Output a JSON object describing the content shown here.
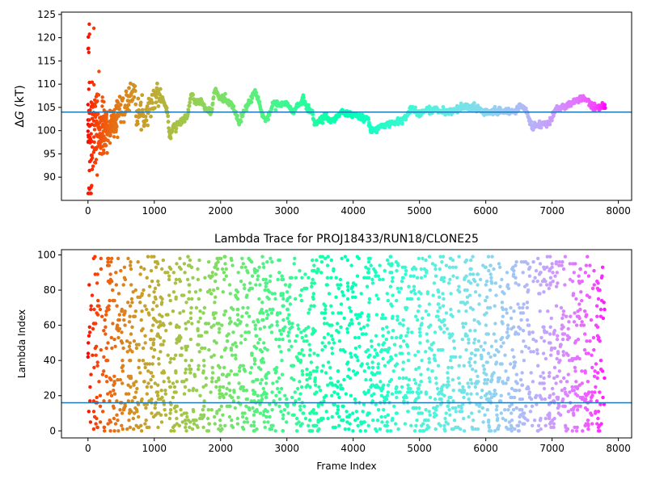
{
  "chart_data": [
    {
      "type": "scatter",
      "title": "",
      "xlabel": "",
      "ylabel": "ΔG (kT)",
      "ylabel_parts": {
        "delta": "Δ",
        "var": "G",
        "unit": " (kT)"
      },
      "xlim": [
        -400,
        8200
      ],
      "ylim": [
        85,
        125.5
      ],
      "xticks": [
        0,
        1000,
        2000,
        3000,
        4000,
        5000,
        6000,
        7000,
        8000
      ],
      "xtick_labels": [
        "0",
        "1000",
        "2000",
        "3000",
        "4000",
        "5000",
        "6000",
        "7000",
        "8000"
      ],
      "yticks": [
        90,
        95,
        100,
        105,
        110,
        115,
        120,
        125
      ],
      "ytick_labels": [
        "90",
        "95",
        "100",
        "105",
        "110",
        "115",
        "120",
        "125"
      ],
      "hline": 104,
      "hline_color": "#1f77b4",
      "colormap": "rainbow (red at frame 0 to violet at last frame)",
      "grid": false,
      "legend": "none",
      "point_count": 7800,
      "trace_knots": [
        [
          0,
          100
        ],
        [
          150,
          99
        ],
        [
          250,
          97
        ],
        [
          350,
          101
        ],
        [
          450,
          106
        ],
        [
          550,
          104
        ],
        [
          650,
          108
        ],
        [
          700,
          110
        ],
        [
          750,
          104
        ],
        [
          850,
          103
        ],
        [
          950,
          106
        ],
        [
          1050,
          108
        ],
        [
          1150,
          106
        ],
        [
          1200,
          104
        ],
        [
          1230,
          98.5
        ],
        [
          1300,
          101
        ],
        [
          1400,
          102
        ],
        [
          1500,
          103
        ],
        [
          1560,
          108.5
        ],
        [
          1620,
          106
        ],
        [
          1700,
          106.5
        ],
        [
          1780,
          104.5
        ],
        [
          1860,
          104
        ],
        [
          1920,
          109
        ],
        [
          1980,
          107
        ],
        [
          2050,
          107
        ],
        [
          2150,
          106
        ],
        [
          2220,
          104
        ],
        [
          2280,
          101.5
        ],
        [
          2350,
          104
        ],
        [
          2450,
          106.5
        ],
        [
          2520,
          108.5
        ],
        [
          2580,
          106
        ],
        [
          2650,
          102.5
        ],
        [
          2720,
          103
        ],
        [
          2800,
          106
        ],
        [
          2900,
          105.5
        ],
        [
          3000,
          106
        ],
        [
          3080,
          104
        ],
        [
          3150,
          105
        ],
        [
          3250,
          107
        ],
        [
          3300,
          105
        ],
        [
          3380,
          104
        ],
        [
          3420,
          101.5
        ],
        [
          3500,
          102
        ],
        [
          3580,
          103.5
        ],
        [
          3650,
          102
        ],
        [
          3750,
          103
        ],
        [
          3850,
          104
        ],
        [
          3950,
          103.5
        ],
        [
          4100,
          103
        ],
        [
          4220,
          102.5
        ],
        [
          4270,
          99.8
        ],
        [
          4400,
          100.8
        ],
        [
          4550,
          101.5
        ],
        [
          4700,
          102
        ],
        [
          4800,
          103
        ],
        [
          4900,
          105
        ],
        [
          5000,
          103.5
        ],
        [
          5100,
          104.5
        ],
        [
          5250,
          104.5
        ],
        [
          5400,
          104
        ],
        [
          5550,
          104.5
        ],
        [
          5700,
          105.2
        ],
        [
          5850,
          105
        ],
        [
          6000,
          104
        ],
        [
          6150,
          104.2
        ],
        [
          6300,
          104
        ],
        [
          6450,
          104.2
        ],
        [
          6520,
          105.5
        ],
        [
          6600,
          104.3
        ],
        [
          6700,
          101
        ],
        [
          6850,
          101.2
        ],
        [
          6950,
          101.5
        ],
        [
          7050,
          104.5
        ],
        [
          7150,
          105
        ],
        [
          7300,
          106
        ],
        [
          7400,
          106.5
        ],
        [
          7500,
          107
        ],
        [
          7600,
          105.5
        ],
        [
          7700,
          105
        ],
        [
          7800,
          105.3
        ]
      ],
      "early_scatter_range": [
        86.5,
        124
      ]
    },
    {
      "type": "scatter",
      "title": "Lambda Trace for PROJ18433/RUN18/CLONE25",
      "xlabel": "Frame Index",
      "ylabel": "Lambda Index",
      "xlim": [
        -400,
        8200
      ],
      "ylim": [
        -4,
        103
      ],
      "xticks": [
        0,
        1000,
        2000,
        3000,
        4000,
        5000,
        6000,
        7000,
        8000
      ],
      "xtick_labels": [
        "0",
        "1000",
        "2000",
        "3000",
        "4000",
        "5000",
        "6000",
        "7000",
        "8000"
      ],
      "yticks": [
        0,
        20,
        40,
        60,
        80,
        100
      ],
      "ytick_labels": [
        "0",
        "20",
        "40",
        "60",
        "80",
        "100"
      ],
      "hline": 16,
      "hline_color": "#1f77b4",
      "colormap": "rainbow (red at frame 0 to violet at last frame)",
      "grid": false,
      "legend": "none",
      "lambda_min": 0,
      "lambda_max": 99,
      "frame_range": [
        0,
        7800
      ],
      "point_count": 2600
    }
  ]
}
